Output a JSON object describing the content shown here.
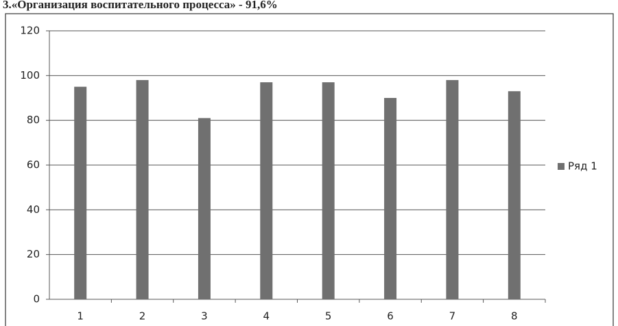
{
  "chart_data": {
    "type": "bar",
    "title": "3.«Организация воспитательного процесса» - 91,6%",
    "categories": [
      "1",
      "2",
      "3",
      "4",
      "5",
      "6",
      "7",
      "8"
    ],
    "series": [
      {
        "name": "Ряд 1",
        "color": "#707070",
        "values": [
          95,
          98,
          81,
          97,
          97,
          90,
          98,
          93
        ]
      }
    ],
    "ylim": [
      0,
      120
    ],
    "yticks": [
      0,
      20,
      40,
      60,
      80,
      100,
      120
    ],
    "grid": true,
    "legend": "right"
  }
}
